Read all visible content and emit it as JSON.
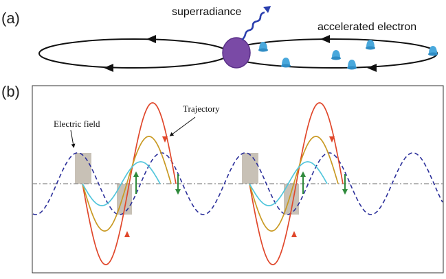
{
  "panel_a": {
    "label": "(a)",
    "superradiance_label": "superradiance",
    "electron_label": "accelerated electron"
  },
  "panel_b": {
    "label": "(b)",
    "electric_field_label": "Electric field",
    "trajectory_label": "Trajectory"
  },
  "colors": {
    "field": "#2b2f9a",
    "trajectory_large": "#e0472b",
    "trajectory_medium": "#c99a24",
    "trajectory_small": "#53c6dc",
    "bunch": "#7a4aa6",
    "electron": "#49a8dc",
    "photon": "#2b3fae",
    "arrow_up": "#2f8a3b",
    "arrow_down": "#2f8a3b",
    "highlight": "#c8c1b6"
  }
}
